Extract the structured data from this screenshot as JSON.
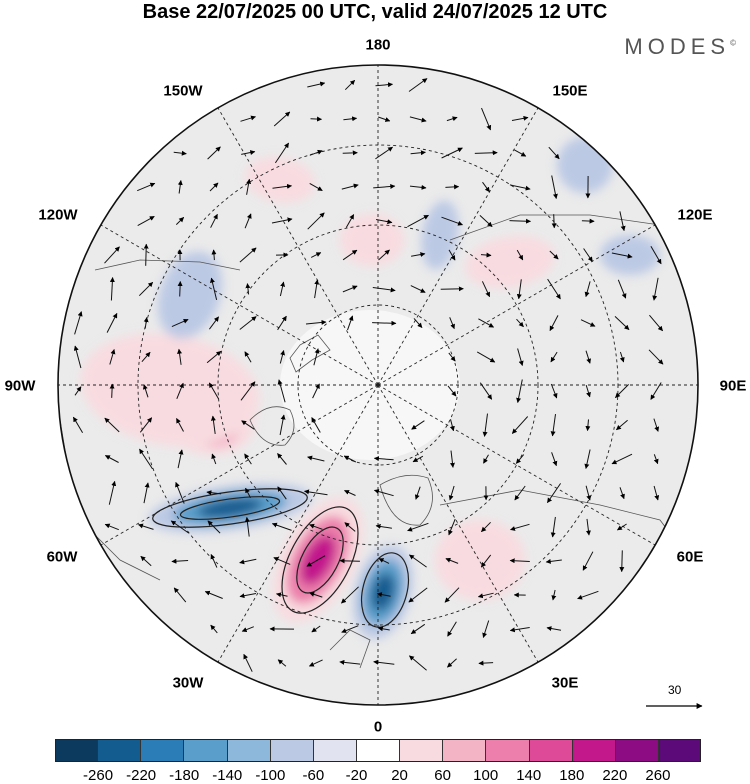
{
  "title": "Base 22/07/2025 00 UTC, valid 24/07/2025 12 UTC",
  "brand": "MODES",
  "brand_mark": "©",
  "longitude_labels": {
    "lon_180": "180",
    "lon_150w": "150W",
    "lon_150e": "150E",
    "lon_120w": "120W",
    "lon_120e": "120E",
    "lon_90w": "90W",
    "lon_90e": "90E",
    "lon_60w": "60W",
    "lon_60e": "60E",
    "lon_30w": "30W",
    "lon_30e": "30E",
    "lon_0": "0"
  },
  "reference_vector": "30",
  "colorbar": {
    "ticks": [
      "-260",
      "-220",
      "-180",
      "-140",
      "-100",
      "-60",
      "-20",
      "20",
      "60",
      "100",
      "140",
      "180",
      "220",
      "260"
    ],
    "colors": [
      "#0b3a5e",
      "#135c8f",
      "#2a7db6",
      "#5a9fcb",
      "#8eb8db",
      "#bcc9e4",
      "#e2e3f1",
      "#ffffff",
      "#f8dbe0",
      "#f3b4c6",
      "#ec7fab",
      "#df4a98",
      "#c2188c",
      "#8d0c84",
      "#5c0a7a"
    ]
  },
  "anomaly_features": [
    {
      "sign": "negative",
      "level": 3
    },
    {
      "sign": "negative",
      "level": 3
    },
    {
      "sign": "positive",
      "level": 3
    },
    {
      "sign": "positive",
      "level": 2
    },
    {
      "sign": "positive",
      "level": 1
    },
    {
      "sign": "positive",
      "level": 1
    },
    {
      "sign": "negative",
      "level": 1
    },
    {
      "sign": "negative",
      "level": 1
    },
    {
      "sign": "positive",
      "level": 1
    },
    {
      "sign": "positive",
      "level": 1
    },
    {
      "sign": "negative",
      "level": 1
    },
    {
      "sign": "positive",
      "level": 1
    },
    {
      "sign": "negative",
      "level": 1
    }
  ]
}
